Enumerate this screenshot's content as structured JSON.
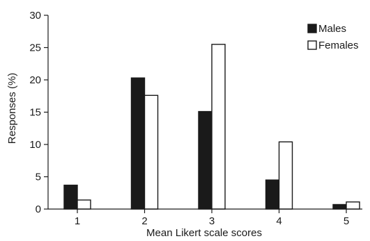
{
  "chart_data": {
    "type": "bar",
    "categories": [
      "1",
      "2",
      "3",
      "4",
      "5"
    ],
    "series": [
      {
        "name": "Males",
        "values": [
          3.7,
          20.3,
          15.1,
          4.5,
          0.7
        ],
        "color": "#1a1a1a"
      },
      {
        "name": "Females",
        "values": [
          1.4,
          17.6,
          25.5,
          10.4,
          1.1
        ],
        "color": "#ffffff"
      }
    ],
    "title": "",
    "xlabel": "Mean Likert scale scores",
    "ylabel": "Responses (%)",
    "ylim": [
      0,
      30
    ],
    "yticks": [
      "0",
      "5",
      "10",
      "15",
      "20",
      "25",
      "30"
    ],
    "grid": false,
    "legend_position": "top-right"
  }
}
